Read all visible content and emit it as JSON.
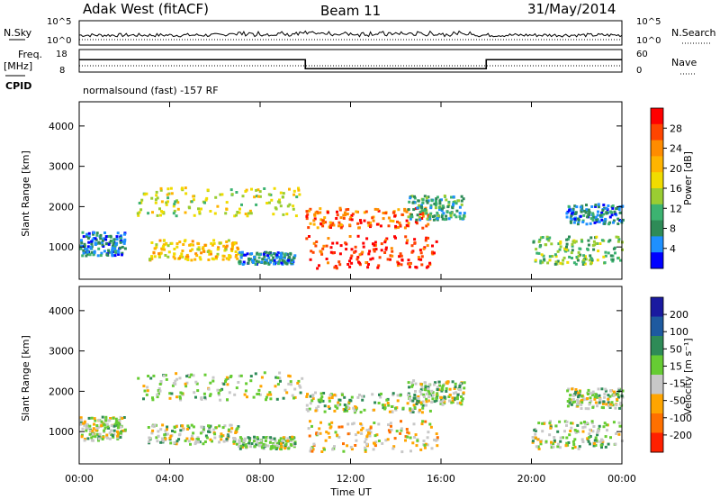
{
  "header": {
    "station": "Adak West (fitACF)",
    "beam": "Beam 11",
    "date": "31/May/2014"
  },
  "left_labels": {
    "nsky": "N.Sky",
    "freq_line1": "Freq.",
    "freq_line2": "[MHz]",
    "cpid": "CPID"
  },
  "right_labels": {
    "nsearch": "N.Search",
    "nave": "Nave"
  },
  "mode_text": "normalsound (fast) -157 RF",
  "chart_data": [
    {
      "type": "line",
      "name": "noise-panel",
      "left_ticks": [
        "10^5",
        "10^0"
      ],
      "right_ticks": [
        "10^5",
        "10^0"
      ],
      "ylim_log": [
        0,
        5
      ]
    },
    {
      "type": "line",
      "name": "frequency-panel",
      "left_ticks": [
        "18",
        "8"
      ],
      "right_ticks": [
        "60",
        "0"
      ],
      "ylim_left": [
        8,
        18
      ],
      "ylim_right": [
        0,
        60
      ],
      "freq_steps": [
        {
          "x_start": 0,
          "x_end": 10,
          "level": 0.55
        },
        {
          "x_start": 10,
          "x_end": 18,
          "level": 0.15
        },
        {
          "x_start": 18,
          "x_end": 24,
          "level": 0.55
        }
      ]
    },
    {
      "type": "heatmap",
      "name": "power",
      "ylabel": "Slant Range [km]",
      "colorbar_label": "Power [dB]",
      "y_ticks": [
        "4000",
        "3000",
        "2000",
        "1000"
      ],
      "ylim": [
        200,
        4600
      ],
      "xlim_hours": [
        0,
        24
      ],
      "colorbar_ticks": [
        "28",
        "24",
        "20",
        "16",
        "12",
        "8",
        "4"
      ],
      "colorbar_colors": [
        "#ff0000",
        "#ff4500",
        "#ff8c00",
        "#ffb400",
        "#f0dc00",
        "#9acd32",
        "#3cb371",
        "#2e8b57",
        "#1e90ff",
        "#0000ff"
      ]
    },
    {
      "type": "heatmap",
      "name": "velocity",
      "ylabel": "Slant Range [km]",
      "colorbar_label": "Velocity [m s⁻¹]",
      "y_ticks": [
        "4000",
        "3000",
        "2000",
        "1000"
      ],
      "ylim": [
        200,
        4600
      ],
      "xlim_hours": [
        0,
        24
      ],
      "colorbar_ticks": [
        "200",
        "100",
        "50",
        "15",
        "-15",
        "-50",
        "-100",
        "-200"
      ],
      "colorbar_colors": [
        "#1a1aa0",
        "#1e5aa0",
        "#2e8b57",
        "#66cc33",
        "#c8c8c8",
        "#ffa500",
        "#ff7000",
        "#ff2000"
      ]
    }
  ],
  "x_axis": {
    "ticks": [
      "00:00",
      "04:00",
      "08:00",
      "12:00",
      "16:00",
      "20:00",
      "00:00"
    ],
    "label": "Time UT"
  }
}
